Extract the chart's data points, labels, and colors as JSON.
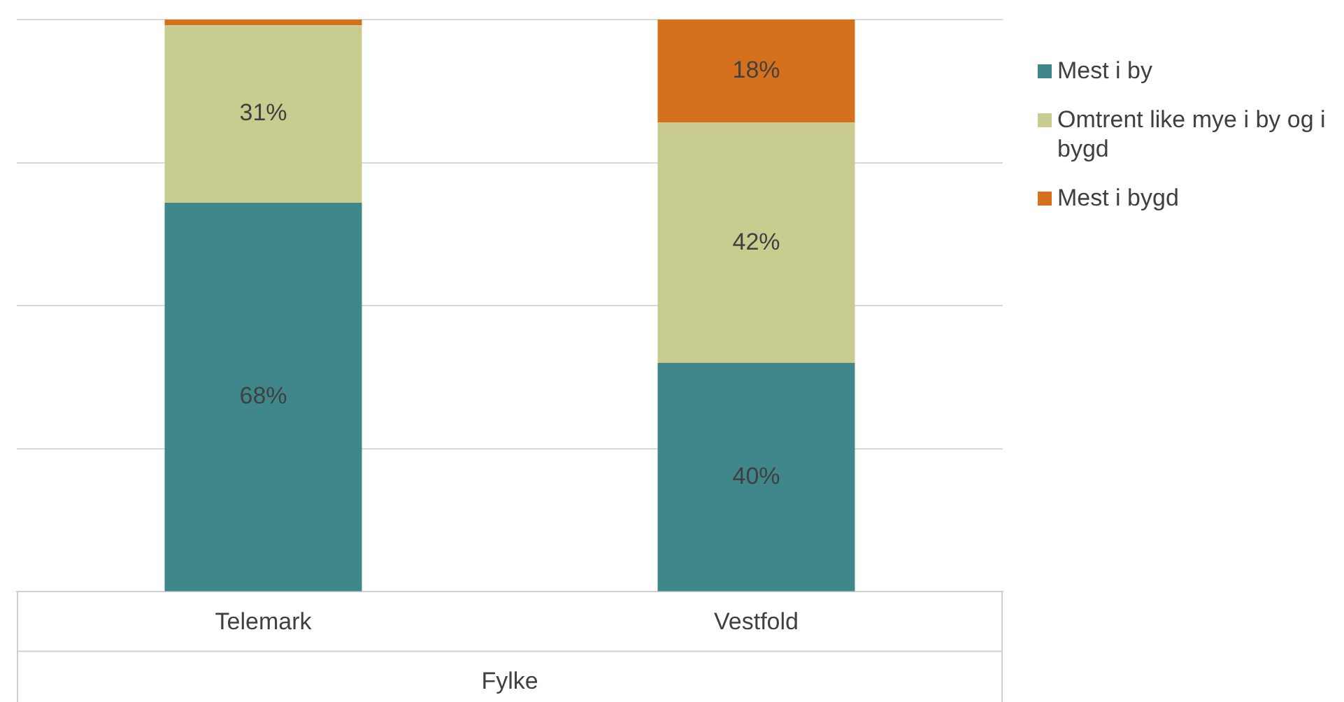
{
  "chart_data": {
    "type": "bar",
    "stacked": true,
    "categories": [
      "Telemark",
      "Vestfold"
    ],
    "xlabel": "Fylke",
    "series": [
      {
        "name": "Mest i by",
        "color": "#3f878a",
        "values": [
          68,
          40
        ],
        "value_labels": [
          "68%",
          "40%"
        ]
      },
      {
        "name": "Omtrent like mye i by og i bygd",
        "color": "#c8cd8f",
        "values": [
          31,
          42
        ],
        "value_labels": [
          "31%",
          "42%"
        ]
      },
      {
        "name": "Mest i bygd",
        "color": "#d5711d",
        "values": [
          1,
          18
        ],
        "value_labels": [
          null,
          "18%"
        ]
      }
    ],
    "ylim": [
      0,
      100
    ],
    "yticks": [
      {
        "value": 0,
        "label": null
      },
      {
        "value": 25,
        "label": null
      },
      {
        "value": 50,
        "label": null
      },
      {
        "value": 75,
        "label": null
      },
      {
        "value": 100,
        "label": null
      }
    ],
    "tick_labels": "x",
    "grid": "y",
    "legend": "right"
  }
}
